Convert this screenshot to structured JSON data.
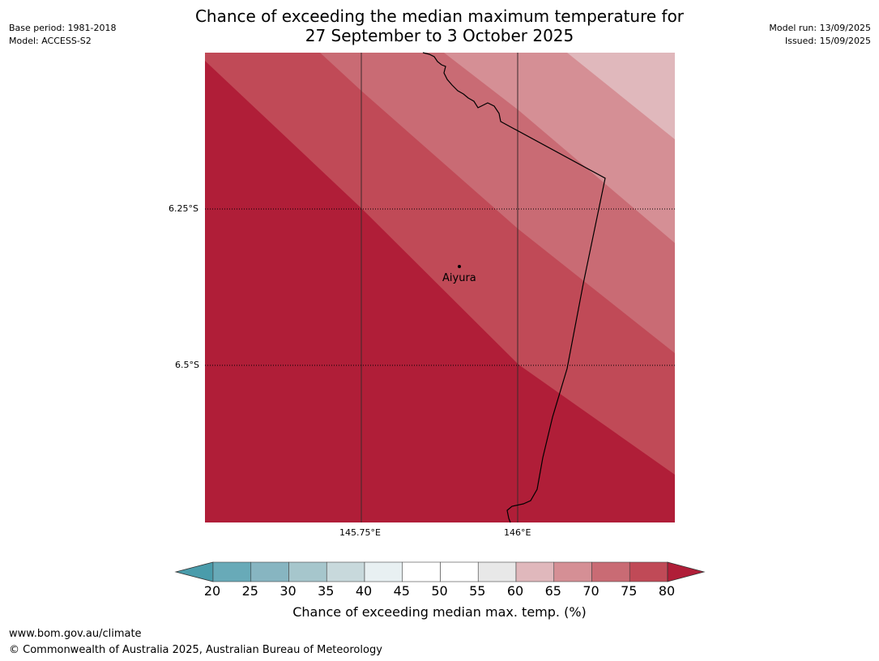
{
  "title": {
    "line1": "Chance of exceeding the median maximum temperature for",
    "line2": "27 September to 3 October 2025"
  },
  "meta": {
    "base_period": "Base period: 1981-2018",
    "model": "Model: ACCESS-S2",
    "model_run": "Model run: 13/09/2025",
    "issued": "Issued: 15/09/2025"
  },
  "map": {
    "grid_labels": {
      "lat_1": "6.25°S",
      "lat_2": "6.5°S",
      "lon_1": "145.75°E",
      "lon_2": "146°E"
    },
    "place": {
      "name": "Aiyura"
    },
    "band_colors": {
      "80": "#b01e38",
      "75": "#c04a57",
      "70": "#c96b74",
      "65": "#d58f95",
      "60": "#e0b8bc"
    }
  },
  "colorbar": {
    "label": "Chance of exceeding median max. temp. (%)",
    "ticks": [
      "20",
      "25",
      "30",
      "35",
      "40",
      "45",
      "50",
      "55",
      "60",
      "65",
      "70",
      "75",
      "80"
    ],
    "colors": [
      "#68aab8",
      "#87b5c1",
      "#a6c6cc",
      "#c8d9dc",
      "#e8f0f2",
      "#ffffff",
      "#ffffff",
      "#e8e8e8",
      "#e0b8bc",
      "#d58f95",
      "#c96b74",
      "#c04a57"
    ],
    "under_color": "#4a9cab",
    "over_color": "#b01e38"
  },
  "footer": {
    "url": "www.bom.gov.au/climate",
    "copyright": "© Commonwealth of Australia 2025, Australian Bureau of Meteorology"
  }
}
